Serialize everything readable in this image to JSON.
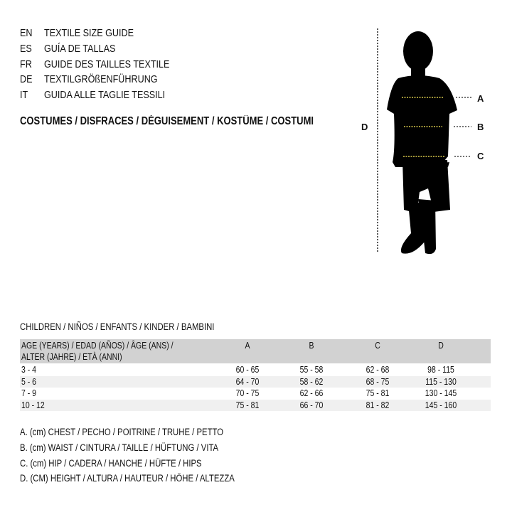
{
  "title_lines": [
    {
      "code": "EN",
      "text": "TEXTILE SIZE GUIDE"
    },
    {
      "code": "ES",
      "text": "GUÍA DE TALLAS"
    },
    {
      "code": "FR",
      "text": "GUIDE DES TAILLES TEXTILE"
    },
    {
      "code": "DE",
      "text": "TEXTILGRÖßENFÜHRUNG"
    },
    {
      "code": "IT",
      "text": "GUIDA ALLE TAGLIE TESSILI"
    }
  ],
  "category": "COSTUMES / DISFRACES / DÉGUISEMENT / KOSTÜME / COSTUMI",
  "diagram": {
    "labels": {
      "a": "A",
      "b": "B",
      "c": "C",
      "d": "D"
    },
    "measure_line_color": "#d8c84a"
  },
  "group": "CHILDREN / NIÑOS / ENFANTS / KINDER / BAMBINI",
  "table": {
    "header": {
      "age_line1": "AGE (YEARS) / EDAD (AÑOS) / ÂGE (ANS) /",
      "age_line2": "ALTER (JAHRE) / ETÀ (ANNI)",
      "a": "A",
      "b": "B",
      "c": "C",
      "d": "D"
    },
    "rows": [
      {
        "age": "3 - 4",
        "a": "60 - 65",
        "b": "55 - 58",
        "c": "62 - 68",
        "d": "98 - 115"
      },
      {
        "age": "5 - 6",
        "a": "64 - 70",
        "b": "58 - 62",
        "c": "68 - 75",
        "d": "115 - 130"
      },
      {
        "age": "7 - 9",
        "a": "70 - 75",
        "b": "62 - 66",
        "c": "75 - 81",
        "d": "130 - 145"
      },
      {
        "age": "10 - 12",
        "a": "75 - 81",
        "b": "66 - 70",
        "c": "81 - 82",
        "d": "145 - 160"
      }
    ]
  },
  "legend": [
    "A. (cm) CHEST / PECHO / POITRINE / TRUHE / PETTO",
    "B. (cm) WAIST / CINTURA / TAILLE / HÜFTUNG / VITA",
    "C. (cm) HIP / CADERA / HANCHE / HÜFTE / HIPS",
    "D. (CM) HEIGHT / ALTURA / HAUTEUR / HÖHE / ALTEZZA"
  ]
}
